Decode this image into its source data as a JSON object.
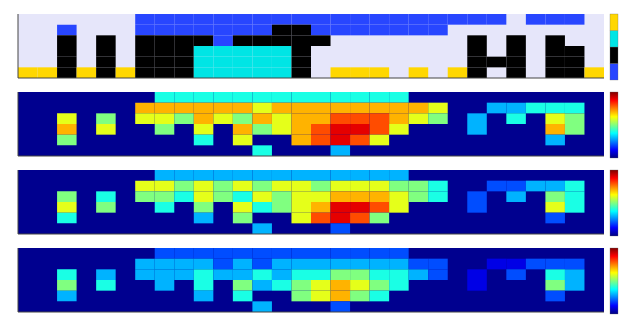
{
  "chart_data": [
    {
      "type": "heatmap",
      "xlim": [
        0,
        30
      ],
      "ylim": [
        0,
        6
      ],
      "tick_labels": false,
      "color": "#e6e6fa",
      "colors": [
        "#2846ff",
        "#000000",
        "#00e5e5",
        "#ffd700"
      ],
      "cells": [
        [
          null,
          null,
          null,
          null,
          null,
          null,
          1,
          1,
          1,
          1,
          1,
          1,
          1,
          1,
          1,
          1,
          1,
          1,
          1,
          1,
          1,
          1,
          1,
          1,
          1,
          null,
          1,
          1,
          1,
          null
        ],
        [
          null,
          null,
          1,
          null,
          null,
          null,
          1,
          1,
          1,
          1,
          1,
          1,
          1,
          2,
          2,
          1,
          1,
          1,
          1,
          1,
          1,
          1,
          null,
          null,
          null,
          null,
          null,
          null,
          null,
          null
        ],
        [
          null,
          null,
          2,
          null,
          2,
          null,
          2,
          2,
          2,
          2,
          1,
          2,
          2,
          2,
          2,
          2,
          null,
          null,
          null,
          null,
          null,
          null,
          null,
          2,
          null,
          2,
          null,
          2,
          null,
          null
        ],
        [
          null,
          null,
          2,
          null,
          2,
          null,
          2,
          2,
          2,
          3,
          3,
          3,
          3,
          3,
          2,
          null,
          null,
          null,
          null,
          null,
          null,
          null,
          null,
          2,
          null,
          2,
          null,
          2,
          2,
          null
        ],
        [
          null,
          null,
          2,
          null,
          2,
          null,
          2,
          2,
          2,
          3,
          3,
          3,
          3,
          3,
          2,
          null,
          null,
          null,
          null,
          null,
          null,
          null,
          null,
          2,
          2,
          2,
          null,
          2,
          2,
          null
        ],
        [
          4,
          4,
          2,
          4,
          2,
          4,
          2,
          2,
          2,
          3,
          3,
          3,
          3,
          3,
          2,
          null,
          4,
          4,
          4,
          null,
          4,
          null,
          4,
          2,
          null,
          2,
          null,
          2,
          2,
          4
        ]
      ]
    },
    {
      "type": "heatmap",
      "xlim": [
        0,
        30
      ],
      "ylim": [
        0,
        6
      ],
      "tick_labels": false,
      "color": "#00008f",
      "zlim": [
        0,
        10
      ],
      "cells": [
        [
          null,
          null,
          null,
          null,
          null,
          null,
          null,
          4,
          4,
          4,
          4,
          4,
          4,
          4,
          4,
          4,
          4,
          4,
          4,
          4,
          null,
          null,
          null,
          null,
          null,
          null,
          null,
          null,
          null,
          null
        ],
        [
          null,
          null,
          null,
          null,
          null,
          null,
          7,
          7,
          7,
          7,
          7,
          7,
          6,
          7,
          7,
          7,
          7,
          7,
          7,
          7,
          7,
          6,
          null,
          null,
          3,
          3,
          4,
          4,
          4,
          null
        ],
        [
          null,
          null,
          6,
          null,
          5,
          null,
          6,
          6,
          5,
          7,
          6,
          5,
          7,
          6,
          7,
          7,
          8,
          8,
          8,
          7,
          6,
          5,
          null,
          3,
          null,
          4,
          null,
          6,
          5,
          null
        ],
        [
          null,
          null,
          7,
          null,
          6,
          null,
          null,
          5,
          null,
          6,
          null,
          7,
          5,
          6,
          7,
          8,
          9,
          9,
          8,
          6,
          null,
          null,
          null,
          3,
          null,
          null,
          null,
          7,
          5,
          null
        ],
        [
          null,
          null,
          5,
          null,
          null,
          null,
          null,
          null,
          null,
          4,
          null,
          6,
          null,
          null,
          7,
          8,
          9,
          8,
          6,
          null,
          null,
          null,
          null,
          null,
          null,
          null,
          null,
          3,
          null,
          null
        ],
        [
          null,
          null,
          null,
          null,
          null,
          null,
          null,
          null,
          null,
          null,
          null,
          null,
          4,
          null,
          null,
          null,
          3,
          null,
          null,
          null,
          null,
          null,
          null,
          null,
          null,
          null,
          null,
          null,
          null,
          null
        ]
      ]
    },
    {
      "type": "heatmap",
      "xlim": [
        0,
        30
      ],
      "ylim": [
        0,
        6
      ],
      "tick_labels": false,
      "color": "#00008f",
      "zlim": [
        0,
        10
      ],
      "cells": [
        [
          null,
          null,
          null,
          null,
          null,
          null,
          null,
          3,
          3,
          3,
          3,
          3,
          3,
          3,
          3,
          3,
          3,
          3,
          3,
          3,
          null,
          null,
          null,
          null,
          null,
          null,
          null,
          null,
          null,
          null
        ],
        [
          null,
          null,
          null,
          null,
          null,
          null,
          6,
          6,
          5,
          6,
          5,
          6,
          5,
          6,
          6,
          5,
          6,
          6,
          6,
          5,
          5,
          4,
          null,
          null,
          2,
          2,
          3,
          3,
          4,
          null
        ],
        [
          null,
          null,
          5,
          null,
          4,
          null,
          5,
          5,
          4,
          6,
          5,
          4,
          6,
          5,
          6,
          6,
          7,
          7,
          7,
          6,
          5,
          4,
          null,
          2,
          null,
          3,
          null,
          5,
          4,
          null
        ],
        [
          null,
          null,
          6,
          null,
          5,
          null,
          null,
          4,
          null,
          5,
          null,
          6,
          4,
          5,
          6,
          7,
          9,
          9,
          8,
          6,
          null,
          null,
          null,
          2,
          null,
          null,
          null,
          6,
          4,
          null
        ],
        [
          null,
          null,
          4,
          null,
          null,
          null,
          null,
          null,
          null,
          3,
          null,
          5,
          null,
          null,
          6,
          8,
          9,
          8,
          5,
          null,
          null,
          null,
          null,
          null,
          null,
          null,
          null,
          2,
          null,
          null
        ],
        [
          null,
          null,
          null,
          null,
          null,
          null,
          null,
          null,
          null,
          null,
          null,
          null,
          3,
          null,
          null,
          null,
          2,
          null,
          null,
          null,
          null,
          null,
          null,
          null,
          null,
          null,
          null,
          null,
          null,
          null
        ]
      ]
    },
    {
      "type": "heatmap",
      "xlim": [
        0,
        30
      ],
      "ylim": [
        0,
        6
      ],
      "tick_labels": false,
      "color": "#00008f",
      "zlim": [
        0,
        10
      ],
      "cells": [
        [
          null,
          null,
          null,
          null,
          null,
          null,
          null,
          2,
          2,
          2,
          2,
          2,
          2,
          2,
          2,
          2,
          2,
          2,
          2,
          2,
          null,
          null,
          null,
          null,
          null,
          null,
          null,
          null,
          null,
          null
        ],
        [
          null,
          null,
          null,
          null,
          null,
          null,
          3,
          3,
          3,
          3,
          2,
          3,
          2,
          3,
          3,
          3,
          3,
          3,
          3,
          3,
          2,
          2,
          null,
          null,
          1,
          1,
          2,
          2,
          2,
          null
        ],
        [
          null,
          null,
          4,
          null,
          3,
          null,
          3,
          3,
          3,
          4,
          3,
          3,
          4,
          3,
          4,
          4,
          5,
          5,
          4,
          4,
          3,
          2,
          null,
          1,
          null,
          2,
          null,
          4,
          3,
          null
        ],
        [
          null,
          null,
          5,
          null,
          4,
          null,
          null,
          3,
          null,
          4,
          null,
          5,
          3,
          4,
          5,
          6,
          7,
          6,
          5,
          4,
          null,
          null,
          null,
          1,
          null,
          null,
          null,
          5,
          3,
          null
        ],
        [
          null,
          null,
          3,
          null,
          null,
          null,
          null,
          null,
          null,
          3,
          null,
          4,
          null,
          null,
          5,
          6,
          7,
          5,
          4,
          null,
          null,
          null,
          null,
          null,
          null,
          null,
          null,
          2,
          null,
          null
        ],
        [
          null,
          null,
          null,
          null,
          null,
          null,
          null,
          null,
          null,
          null,
          null,
          null,
          3,
          null,
          null,
          null,
          2,
          null,
          null,
          null,
          null,
          null,
          null,
          null,
          null,
          null,
          null,
          null,
          null,
          null
        ]
      ]
    }
  ]
}
